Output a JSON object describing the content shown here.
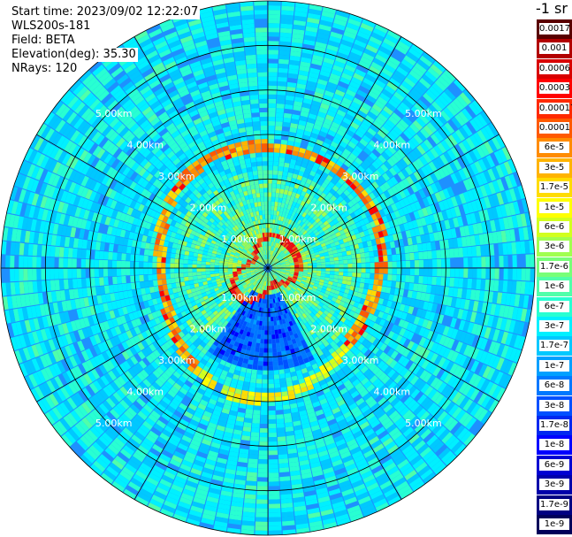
{
  "header": {
    "start_time": "Start time: 2023/09/02 12:22:07",
    "instrument": "WLS200s-181",
    "field": "Field: BETA",
    "elevation": "Elevation(deg): 35.30",
    "nrays": "NRays: 120"
  },
  "colorbar": {
    "title": "-1 sr",
    "bins": [
      {
        "label": "0.0017",
        "color": "#5a0000"
      },
      {
        "label": "0.001",
        "color": "#b20000"
      },
      {
        "label": "0.0006",
        "color": "#d90000"
      },
      {
        "label": "0.0003",
        "color": "#ff0000"
      },
      {
        "label": "0.00017",
        "color": "#ff2a00"
      },
      {
        "label": "0.0001",
        "color": "#ff5a00"
      },
      {
        "label": "6e-5",
        "color": "#ff8c00"
      },
      {
        "label": "3e-5",
        "color": "#ffb400"
      },
      {
        "label": "1.7e-5",
        "color": "#ffdc00"
      },
      {
        "label": "1e-5",
        "color": "#ffff00"
      },
      {
        "label": "6e-6",
        "color": "#d2ff1e"
      },
      {
        "label": "3e-6",
        "color": "#a0ff50"
      },
      {
        "label": "1.7e-6",
        "color": "#78ff78"
      },
      {
        "label": "1e-6",
        "color": "#50ffaa"
      },
      {
        "label": "6e-7",
        "color": "#28ffd2"
      },
      {
        "label": "3e-7",
        "color": "#00f0ff"
      },
      {
        "label": "1.7e-7",
        "color": "#00c8ff"
      },
      {
        "label": "1e-7",
        "color": "#00a0ff"
      },
      {
        "label": "6e-8",
        "color": "#0078ff"
      },
      {
        "label": "3e-8",
        "color": "#0050ff"
      },
      {
        "label": "1.7e-8",
        "color": "#0028f0"
      },
      {
        "label": "1e-8",
        "color": "#0000ff"
      },
      {
        "label": "6e-9",
        "color": "#0000d2"
      },
      {
        "label": "3e-9",
        "color": "#0000aa"
      },
      {
        "label": "1.7e-9",
        "color": "#000082"
      },
      {
        "label": "1e-9",
        "color": "#00005a"
      }
    ]
  },
  "plot": {
    "ring_labels": [
      "1.00km",
      "2.00km",
      "3.00km",
      "4.00km",
      "5.00km"
    ],
    "max_range_km": 6,
    "nrays": 120,
    "gates": 60,
    "colors": {
      "background": "#1e90ff",
      "spoke": "#000000",
      "ring": "#000000",
      "ring_label": "#ffffff"
    }
  }
}
